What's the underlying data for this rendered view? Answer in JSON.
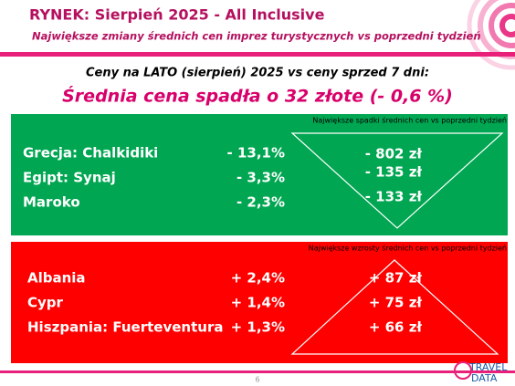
{
  "header": {
    "title": "RYNEK: Sierpień 2025 - All Inclusive",
    "subtitle": "Największe zmiany średnich cen imprez turystycznych vs poprzedni tydzień"
  },
  "summary": {
    "caption": "Ceny na LATO (sierpień) 2025 vs ceny sprzed 7 dni:",
    "headline": "Średnia cena spadła o 32 złote (- 0,6 %)"
  },
  "decreases": {
    "caption": "Największe spadki średnich cen vs poprzedni tydzień",
    "rows": [
      [
        "Grecja: Chalkidiki",
        "-  13,1%",
        "- 802 zł"
      ],
      [
        "Egipt: Synaj",
        "-  3,3%",
        "- 135 zł"
      ],
      [
        "Maroko",
        "-  2,3%",
        "- 133 zł"
      ]
    ]
  },
  "increases": {
    "caption": "Największe wzrosty średnich cen vs poprzedni tydzień",
    "rows": [
      [
        "Albania",
        "+ 2,4%",
        "+ 87 zł"
      ],
      [
        "Cypr",
        "+ 1,4%",
        "+ 75 zł"
      ],
      [
        "Hiszpania: Fuerteventura",
        "+ 1,3%",
        "+ 66 zł"
      ]
    ]
  },
  "footer": {
    "page": "6",
    "logo_top": "TRAVEL",
    "logo_bottom": "DATA"
  }
}
